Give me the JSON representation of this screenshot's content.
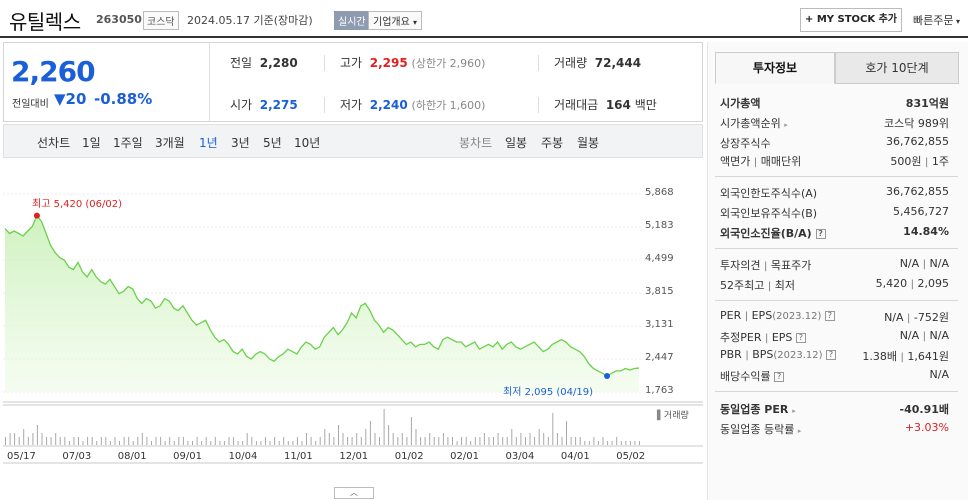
{
  "header": {
    "name": "유틸렉스",
    "code": "263050",
    "market": "코스닥",
    "date": "2024.05.17",
    "basis": "기준(장마감)",
    "realtime": "실시간",
    "overview": "기업개요",
    "mystock": "+ MY STOCK 추가",
    "quick_order": "빠른주문"
  },
  "quote": {
    "price": "2,260",
    "prev_label": "전일대비",
    "change": "▼20",
    "change_pct": "-0.88%",
    "prev_close_label": "전일",
    "prev_close": "2,280",
    "high_label": "고가",
    "high": "2,295",
    "upper_limit": "(상한가 2,960)",
    "volume_label": "거래량",
    "volume": "72,444",
    "open_label": "시가",
    "open": "2,275",
    "low_label": "저가",
    "low": "2,240",
    "lower_limit": "(하한가 1,600)",
    "amount_label": "거래대금",
    "amount": "164",
    "amount_unit": "백만"
  },
  "tabs": {
    "line_label": "선차트",
    "line_periods": [
      "1일",
      "1주일",
      "3개월",
      "1년",
      "3년",
      "5년",
      "10년"
    ],
    "active": "1년",
    "candle_label": "봉차트",
    "candle_periods": [
      "일봉",
      "주봉",
      "월봉"
    ]
  },
  "chart_data": {
    "type": "area",
    "y_ticks": [
      "5,868",
      "5,183",
      "4,499",
      "3,815",
      "3,131",
      "2,447",
      "1,763"
    ],
    "ylim": [
      1763,
      5868
    ],
    "x_ticks": [
      "05/17",
      "07/03",
      "08/01",
      "09/01",
      "10/04",
      "11/01",
      "12/01",
      "01/02",
      "02/01",
      "03/04",
      "04/01",
      "05/02"
    ],
    "high_label": "최고 5,420 (06/02)",
    "low_label": "최저 2,095 (04/19)",
    "volume_legend": "거래량",
    "series": [
      {
        "values": [
          5150,
          5050,
          5100,
          5050,
          5000,
          5100,
          5200,
          5420,
          5300,
          5050,
          4800,
          4650,
          4550,
          4500,
          4350,
          4300,
          4450,
          4250,
          4150,
          4300,
          4150,
          4050,
          4000,
          4100,
          3950,
          3800,
          3850,
          3950,
          3900,
          3700,
          3600,
          3700,
          3650,
          3500,
          3550,
          3700,
          3650,
          3500,
          3450,
          3550,
          3400,
          3250,
          3150,
          3200,
          3250,
          3050,
          2900,
          2800,
          2850,
          2750,
          2600,
          2550,
          2650,
          2500,
          2450,
          2550,
          2600,
          2550,
          2450,
          2400,
          2500,
          2550,
          2650,
          2600,
          2550,
          2700,
          2800,
          2750,
          2650,
          2700,
          2900,
          3000,
          3100,
          2950,
          3050,
          3200,
          3400,
          3300,
          3550,
          3600,
          3450,
          3250,
          3150,
          3000,
          3100,
          3050,
          2950,
          2850,
          2750,
          2800,
          2700,
          2750,
          2750,
          2800,
          2700,
          2650,
          2850,
          2900,
          2850,
          2800,
          2800,
          2700,
          2750,
          2800,
          2650,
          2700,
          2750,
          2700,
          2800,
          2650,
          2750,
          2800,
          2700,
          2650,
          2700,
          2750,
          2800,
          2700,
          2600,
          2650,
          2750,
          2800,
          2850,
          2800,
          2700,
          2650,
          2600,
          2500,
          2350,
          2250,
          2200,
          2150,
          2095,
          2150,
          2200,
          2200,
          2250,
          2220,
          2250,
          2260
        ]
      }
    ],
    "volume": [
      2,
      3,
      3,
      2,
      4,
      2,
      3,
      5,
      3,
      2,
      2,
      3,
      2,
      2,
      1,
      2,
      2,
      1,
      2,
      2,
      1,
      2,
      2,
      1,
      2,
      1,
      2,
      2,
      1,
      2,
      3,
      2,
      1,
      2,
      2,
      1,
      2,
      1,
      2,
      2,
      1,
      1,
      2,
      1,
      2,
      1,
      2,
      1,
      1,
      2,
      2,
      1,
      1,
      3,
      2,
      1,
      1,
      2,
      1,
      2,
      1,
      2,
      1,
      1,
      2,
      1,
      3,
      2,
      1,
      2,
      4,
      3,
      2,
      5,
      3,
      2,
      2,
      3,
      2,
      4,
      6,
      3,
      2,
      9,
      5,
      3,
      2,
      3,
      2,
      7,
      4,
      2,
      2,
      3,
      2,
      2,
      3,
      2,
      2,
      1,
      2,
      2,
      1,
      2,
      2,
      3,
      2,
      2,
      3,
      2,
      2,
      4,
      2,
      3,
      2,
      3,
      2,
      4,
      3,
      2,
      8,
      3,
      2,
      6,
      2,
      2,
      2,
      1,
      1,
      2,
      1,
      2,
      1,
      1,
      2,
      1,
      1,
      1,
      1,
      1
    ]
  },
  "info": {
    "tab_active": "투자정보",
    "tab_other": "호가 10단계",
    "market_cap_label": "시가총액",
    "market_cap": "831억원",
    "market_cap_rank_label": "시가총액순위",
    "market_cap_rank": "코스닥 989위",
    "shares_label": "상장주식수",
    "shares": "36,762,855",
    "par_label": "액면가",
    "trade_unit_label": "매매단위",
    "par": "500원",
    "trade_unit": "1주",
    "foreign_limit_label": "외국인한도주식수(A)",
    "foreign_limit": "36,762,855",
    "foreign_hold_label": "외국인보유주식수(B)",
    "foreign_hold": "5,456,727",
    "foreign_ratio_label": "외국인소진율(B/A)",
    "foreign_ratio": "14.84%",
    "opinion_label": "투자의견",
    "target_label": "목표주가",
    "opinion": "N/A",
    "target": "N/A",
    "wk52_high_label": "52주최고",
    "wk52_low_label": "최저",
    "wk52_high": "5,420",
    "wk52_low": "2,095",
    "per_label": "PER",
    "eps_label": "EPS",
    "eps_year": "(2023.12)",
    "per": "N/A",
    "eps": "-752원",
    "est_per_label": "추정PER",
    "est_eps_label": "EPS",
    "est_per": "N/A",
    "est_eps": "N/A",
    "pbr_label": "PBR",
    "bps_label": "BPS",
    "bps_year": "(2023.12)",
    "pbr": "1.38배",
    "bps": "1,641원",
    "div_label": "배당수익률",
    "div": "N/A",
    "ind_per_label": "동일업종 PER",
    "ind_per": "-40.91배",
    "ind_chg_label": "동일업종 등락률",
    "ind_chg": "+3.03%"
  }
}
